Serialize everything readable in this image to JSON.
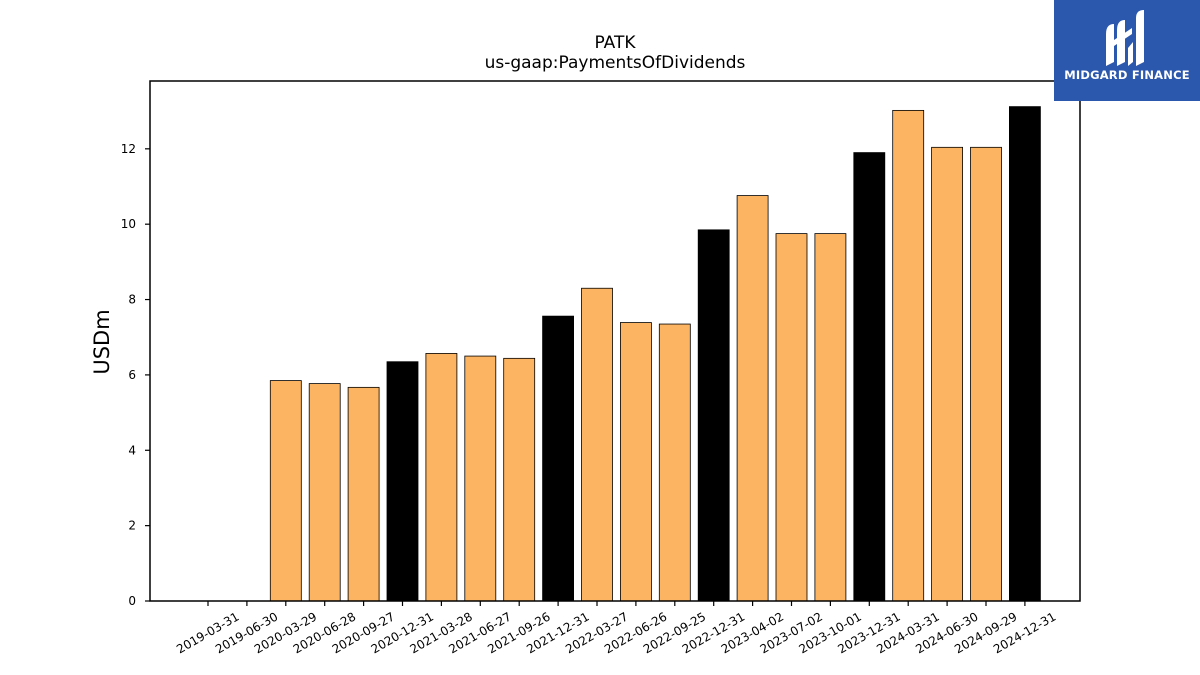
{
  "logo": {
    "text": "MIDGARD FINANCE",
    "icon": "midgard-m-logo-icon"
  },
  "chart_data": {
    "type": "bar",
    "title": "PATK",
    "subtitle": "us-gaap:PaymentsOfDividends",
    "xlabel": "",
    "ylabel": "USDm",
    "ylim": [
      0,
      13.8
    ],
    "yticks": [
      0,
      2,
      4,
      6,
      8,
      10,
      12
    ],
    "grid": false,
    "categories": [
      "2019-03-31",
      "2019-06-30",
      "2020-03-29",
      "2020-06-28",
      "2020-09-27",
      "2020-12-31",
      "2021-03-28",
      "2021-06-27",
      "2021-09-26",
      "2021-12-31",
      "2022-03-27",
      "2022-06-26",
      "2022-09-25",
      "2022-12-31",
      "2023-04-02",
      "2023-07-02",
      "2023-10-01",
      "2023-12-31",
      "2024-03-31",
      "2024-06-30",
      "2024-09-29",
      "2024-12-31"
    ],
    "values": [
      0,
      0,
      5.85,
      5.77,
      5.67,
      6.35,
      6.57,
      6.5,
      6.44,
      7.56,
      8.3,
      7.39,
      7.35,
      9.85,
      10.76,
      9.75,
      9.75,
      11.9,
      13.02,
      12.04,
      12.04,
      13.12
    ],
    "colors": {
      "quarter": "#fdb462",
      "year_end": "#000000",
      "edge": "#000000"
    },
    "year_end_flags": [
      false,
      false,
      false,
      false,
      false,
      true,
      false,
      false,
      false,
      true,
      false,
      false,
      false,
      true,
      false,
      false,
      false,
      true,
      false,
      false,
      false,
      true
    ]
  }
}
